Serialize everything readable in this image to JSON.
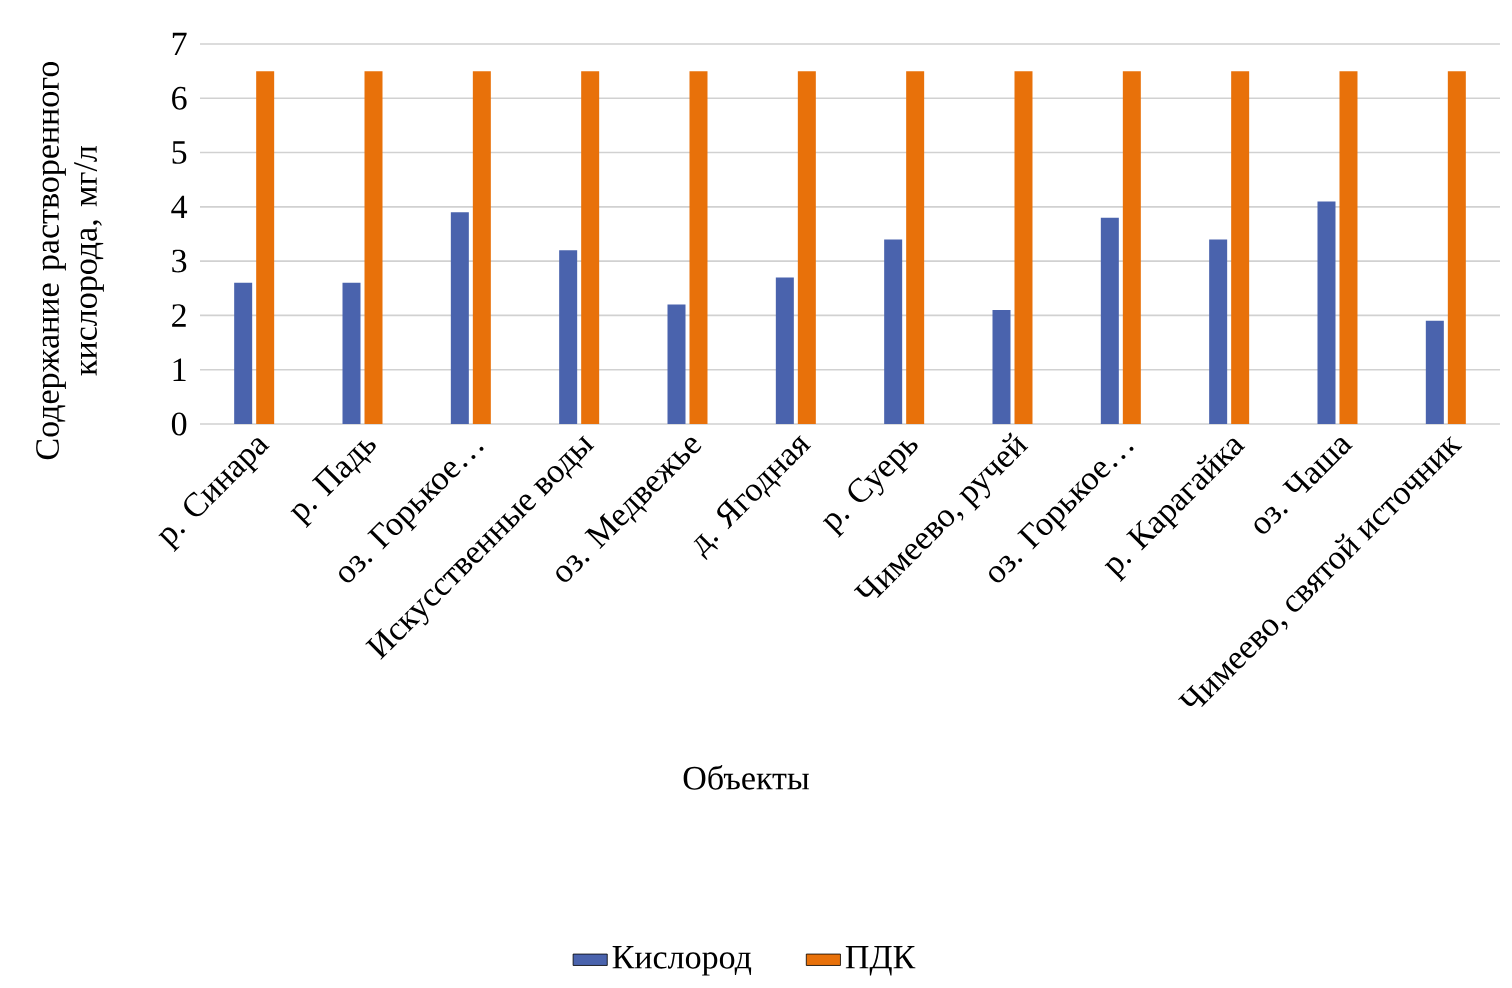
{
  "chart_data": {
    "type": "bar",
    "xlabel": "Объекты",
    "ylabel": "Содержание растворенного кислорода, мг/л",
    "categories": [
      "р. Синара",
      "р. Падь",
      "оз. Горькое…",
      "Искусственные воды",
      "оз. Медвежье",
      "д. Ягодная",
      "р. Суерь",
      "Чимеево, ручей",
      "оз. Горькое…",
      "р. Карагайка",
      "оз. Чаша",
      "Чимеево, святой источник"
    ],
    "series": [
      {
        "name": "Кислород",
        "color": "#4a63ad",
        "values": [
          2.6,
          2.6,
          3.9,
          3.2,
          2.2,
          2.7,
          3.4,
          2.1,
          3.8,
          3.4,
          4.1,
          1.9
        ]
      },
      {
        "name": "ПДК",
        "color": "#e8710a",
        "values": [
          6.5,
          6.5,
          6.5,
          6.5,
          6.5,
          6.5,
          6.5,
          6.5,
          6.5,
          6.5,
          6.5,
          6.5
        ]
      }
    ],
    "ylim": [
      0,
      7
    ],
    "yticks": [
      0,
      1,
      2,
      3,
      4,
      5,
      6,
      7
    ],
    "grid": "y",
    "legend": "bottom"
  }
}
